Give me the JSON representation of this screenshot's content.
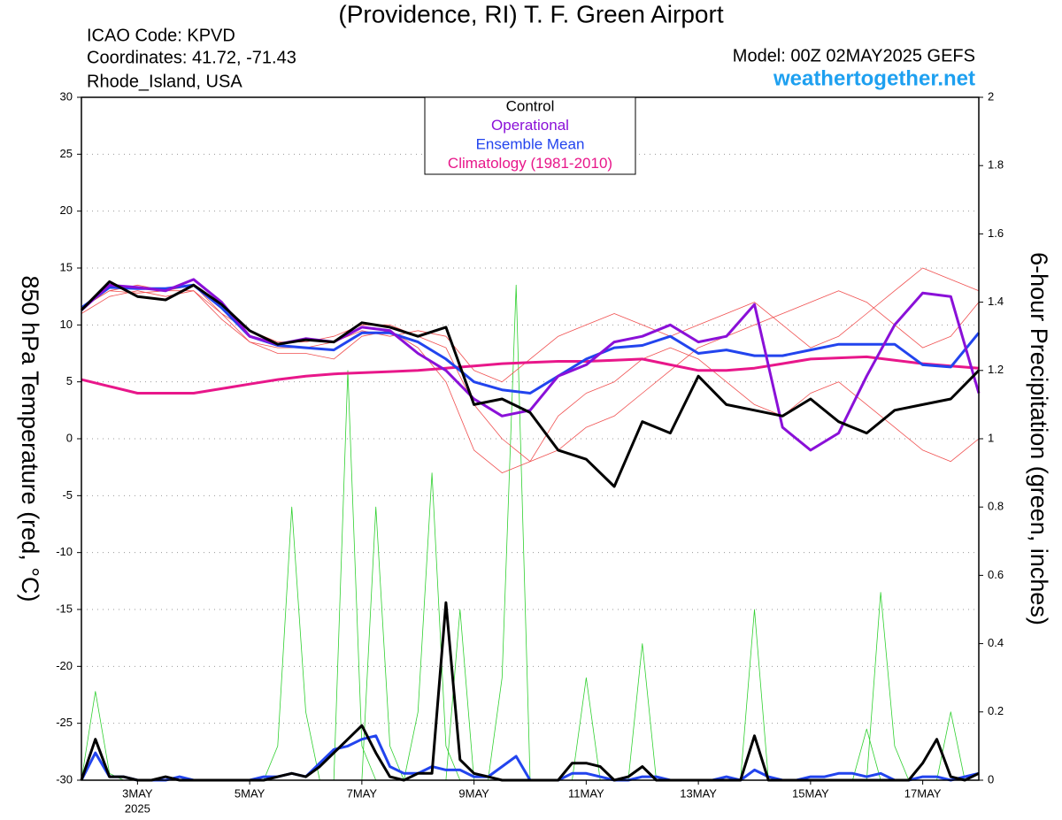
{
  "chart_data": {
    "type": "line",
    "title": "(Providence, RI) T. F. Green Airport",
    "info": [
      "ICAO Code: KPVD",
      "Coordinates: 41.72, -71.43",
      "Rhode_Island, USA"
    ],
    "model": "Model: 00Z 02MAY2025 GEFS",
    "site": "weathertogether.net",
    "ylabel": "850 hPa Temperature (red, °C)",
    "y2label": "6-hour Precipitation (green, inches)",
    "xlim": [
      2,
      18
    ],
    "xticks": [
      {
        "value": 3,
        "label": "3MAY"
      },
      {
        "value": 5,
        "label": "5MAY"
      },
      {
        "value": 7,
        "label": "7MAY"
      },
      {
        "value": 9,
        "label": "9MAY"
      },
      {
        "value": 11,
        "label": "11MAY"
      },
      {
        "value": 13,
        "label": "13MAY"
      },
      {
        "value": 15,
        "label": "15MAY"
      },
      {
        "value": 17,
        "label": "17MAY"
      }
    ],
    "x_year_label": "2025",
    "ylim": [
      -30,
      30
    ],
    "yticks": [
      -30,
      -25,
      -20,
      -15,
      -10,
      -5,
      0,
      5,
      10,
      15,
      20,
      25,
      30
    ],
    "y2lim": [
      0,
      2
    ],
    "y2ticks": [
      0,
      0.2,
      0.4,
      0.6,
      0.8,
      1,
      1.2,
      1.4,
      1.6,
      1.8,
      2
    ],
    "grid": true,
    "x": [
      2,
      2.5,
      3,
      3.5,
      4,
      4.5,
      5,
      5.5,
      6,
      6.5,
      7,
      7.5,
      8,
      8.5,
      9,
      9.5,
      10,
      10.5,
      11,
      11.5,
      12,
      12.5,
      13,
      13.5,
      14,
      14.5,
      15,
      15.5,
      16,
      16.5,
      17,
      17.5,
      18
    ],
    "members": [
      {
        "color": "#f05050",
        "values": [
          11.5,
          13,
          12.8,
          13,
          13.5,
          11,
          9.5,
          8.5,
          8.5,
          9,
          10,
          10,
          9,
          8,
          3,
          0,
          -2,
          -1,
          1,
          2,
          4,
          6,
          8,
          9,
          10,
          11,
          12,
          13,
          12,
          10,
          8,
          9,
          12
        ]
      },
      {
        "color": "#f05050",
        "values": [
          11,
          12.5,
          13,
          12.5,
          13,
          10.5,
          8.5,
          7.5,
          7.5,
          7,
          9,
          9.5,
          8,
          5,
          -1,
          -3,
          -2,
          2,
          4,
          5,
          7,
          8,
          7,
          5,
          3,
          2,
          4,
          5,
          3,
          1,
          -1,
          -2,
          0
        ]
      },
      {
        "color": "#f05050",
        "values": [
          11.5,
          13,
          13.5,
          13,
          13,
          11,
          8.5,
          8,
          8,
          8.5,
          9.5,
          9,
          9.5,
          9,
          6,
          5,
          7,
          9,
          10,
          11,
          10,
          9,
          10,
          11,
          12,
          10,
          8,
          9,
          11,
          13,
          15,
          14,
          13
        ]
      }
    ],
    "series": [
      {
        "name": "Climatology (1981-2010)",
        "color": "#e8178a",
        "values": [
          5.2,
          4.6,
          4.0,
          4.0,
          4.0,
          4.4,
          4.8,
          5.2,
          5.5,
          5.7,
          5.8,
          5.9,
          6.0,
          6.2,
          6.4,
          6.6,
          6.7,
          6.8,
          6.8,
          6.9,
          7.0,
          6.5,
          6.0,
          6.0,
          6.2,
          6.6,
          7.0,
          7.1,
          7.2,
          6.9,
          6.6,
          6.4,
          6.2
        ]
      },
      {
        "name": "Ensemble Mean",
        "color": "#2244ee",
        "values": [
          11.5,
          13.3,
          13.2,
          13.2,
          13.5,
          11.5,
          9.0,
          8.2,
          8.0,
          7.8,
          9.3,
          9.3,
          8.5,
          7.0,
          5.0,
          4.3,
          4.0,
          5.5,
          7.0,
          8.0,
          8.2,
          9.0,
          7.5,
          7.8,
          7.3,
          7.3,
          7.8,
          8.3,
          8.3,
          8.3,
          6.5,
          6.3,
          9.3
        ]
      },
      {
        "name": "Operational",
        "color": "#8a10d8",
        "values": [
          11.3,
          13.5,
          13.3,
          13.0,
          14.0,
          12.0,
          9.0,
          8.3,
          8.8,
          8.5,
          9.8,
          9.5,
          7.5,
          6.0,
          3.5,
          2.0,
          2.5,
          5.5,
          6.5,
          8.5,
          9.0,
          10.0,
          8.5,
          9.0,
          11.8,
          1.0,
          -1.0,
          0.5,
          5.5,
          10.0,
          12.8,
          12.5,
          4.0
        ]
      },
      {
        "name": "Control",
        "color": "#000000",
        "values": [
          11.3,
          13.8,
          12.5,
          12.2,
          13.5,
          11.8,
          9.5,
          8.3,
          8.7,
          8.5,
          10.2,
          9.8,
          9.0,
          9.8,
          3.0,
          3.5,
          2.3,
          -1.0,
          -1.8,
          -4.2,
          1.5,
          0.5,
          5.5,
          3.0,
          2.5,
          2.0,
          3.5,
          1.5,
          0.5,
          2.5,
          3.0,
          3.5,
          6.0
        ]
      }
    ],
    "precip_x": [
      2,
      2.25,
      2.5,
      2.75,
      3,
      3.25,
      3.5,
      3.75,
      4,
      4.25,
      4.5,
      4.75,
      5,
      5.25,
      5.5,
      5.75,
      6,
      6.25,
      6.5,
      6.75,
      7,
      7.25,
      7.5,
      7.75,
      8,
      8.25,
      8.5,
      8.75,
      9,
      9.25,
      9.5,
      9.75,
      10,
      10.25,
      10.5,
      10.75,
      11,
      11.25,
      11.5,
      11.75,
      12,
      12.25,
      12.5,
      12.75,
      13,
      13.25,
      13.5,
      13.75,
      14,
      14.25,
      14.5,
      14.75,
      15,
      15.25,
      15.5,
      15.75,
      16,
      16.25,
      16.5,
      16.75,
      17,
      17.25,
      17.5,
      17.75,
      18
    ],
    "precip_members": [
      {
        "color": "#30d030",
        "values": [
          0,
          0.26,
          0.02,
          0,
          0,
          0,
          0,
          0,
          0,
          0,
          0,
          0,
          0,
          0,
          0.1,
          0.8,
          0.2,
          0,
          0,
          0,
          0,
          0,
          0,
          0,
          0,
          0,
          0,
          0,
          0,
          0,
          0.3,
          1.45,
          0,
          0,
          0,
          0,
          0,
          0,
          0,
          0,
          0,
          0,
          0,
          0,
          0,
          0,
          0,
          0,
          0.5,
          0,
          0,
          0,
          0,
          0,
          0,
          0,
          0,
          0.55,
          0.1,
          0,
          0,
          0,
          0,
          0,
          0
        ]
      },
      {
        "color": "#30d030",
        "values": [
          0,
          0,
          0,
          0,
          0,
          0,
          0,
          0,
          0,
          0,
          0,
          0,
          0,
          0,
          0,
          0,
          0,
          0,
          0,
          1.2,
          0.1,
          0,
          0,
          0,
          0,
          0,
          0,
          0.5,
          0,
          0,
          0,
          0,
          0,
          0,
          0,
          0,
          0,
          0,
          0,
          0,
          0.4,
          0,
          0,
          0,
          0,
          0,
          0,
          0,
          0,
          0,
          0,
          0,
          0,
          0,
          0,
          0,
          0,
          0,
          0,
          0,
          0,
          0,
          0.2,
          0,
          0
        ]
      },
      {
        "color": "#30d030",
        "values": [
          0,
          0,
          0,
          0,
          0,
          0,
          0,
          0,
          0,
          0,
          0,
          0,
          0,
          0,
          0,
          0,
          0,
          0,
          0,
          0,
          0,
          0.8,
          0.1,
          0,
          0.2,
          0.9,
          0.1,
          0,
          0,
          0,
          0,
          0,
          0,
          0,
          0,
          0,
          0.3,
          0,
          0,
          0,
          0,
          0,
          0,
          0,
          0,
          0,
          0,
          0,
          0,
          0,
          0,
          0,
          0,
          0,
          0,
          0,
          0.15,
          0,
          0,
          0,
          0,
          0,
          0,
          0,
          0
        ]
      }
    ],
    "precip_series": [
      {
        "color": "#2244ee",
        "axis": "y2",
        "values": [
          0,
          0.08,
          0.01,
          0.01,
          0,
          0,
          0,
          0.01,
          0,
          0,
          0,
          0,
          0,
          0.01,
          0.01,
          0.02,
          0.01,
          0.05,
          0.09,
          0.1,
          0.12,
          0.13,
          0.04,
          0.02,
          0.02,
          0.04,
          0.03,
          0.03,
          0.01,
          0.01,
          0.04,
          0.07,
          0,
          0,
          0,
          0.02,
          0.02,
          0.01,
          0,
          0,
          0.01,
          0.01,
          0,
          0,
          0,
          0,
          0.01,
          0,
          0.03,
          0.01,
          0,
          0,
          0.01,
          0.01,
          0.02,
          0.02,
          0.01,
          0.02,
          0,
          0,
          0.01,
          0.01,
          0,
          0.01,
          0.02
        ]
      },
      {
        "color": "#000000",
        "axis": "y2",
        "values": [
          0,
          0.12,
          0.01,
          0.01,
          0,
          0,
          0.01,
          0,
          0,
          0,
          0,
          0,
          0,
          0,
          0.01,
          0.02,
          0.01,
          0.04,
          0.08,
          0.12,
          0.16,
          0.08,
          0.01,
          0,
          0.02,
          0.02,
          0.52,
          0.06,
          0.02,
          0.01,
          0,
          0,
          0,
          0,
          0,
          0.05,
          0.05,
          0.04,
          0,
          0.01,
          0.04,
          0,
          0,
          0,
          0,
          0,
          0,
          0,
          0.13,
          0,
          0,
          0,
          0,
          0,
          0,
          0,
          0,
          0,
          0,
          0,
          0.05,
          0.12,
          0.01,
          0,
          0.02
        ]
      }
    ]
  }
}
